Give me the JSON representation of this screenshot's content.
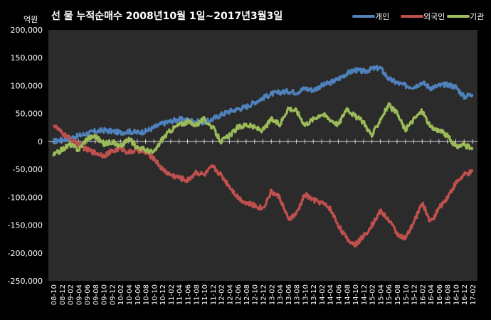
{
  "chart_data": {
    "type": "line",
    "title": "선 물 누적순매수 2008년10월 1일~2017년3월3일",
    "ylabel": "억원",
    "xlabel": "",
    "ylim": [
      -250000,
      200000
    ],
    "yticks": [
      200000,
      150000,
      100000,
      50000,
      0,
      -50000,
      -100000,
      -150000,
      -200000,
      -250000
    ],
    "ytick_labels": [
      "200,000",
      "150,000",
      "100,000",
      "50,000",
      "0",
      "-50,000",
      "-100,000",
      "-150,000",
      "-200,000",
      "-250,000"
    ],
    "legend_position": "top-right",
    "grid": false,
    "categories": [
      "08-10",
      "08-12",
      "09-02",
      "09-04",
      "09-06",
      "09-08",
      "09-10",
      "09-12",
      "10-02",
      "10-04",
      "10-06",
      "10-08",
      "10-10",
      "10-12",
      "11-02",
      "11-04",
      "11-06",
      "11-08",
      "11-10",
      "11-12",
      "12-02",
      "12-04",
      "12-06",
      "12-08",
      "12-10",
      "12-12",
      "13-02",
      "13-04",
      "13-06",
      "13-08",
      "13-10",
      "13-12",
      "14-02",
      "14-04",
      "14-06",
      "14-08",
      "14-10",
      "14-12",
      "15-02",
      "15-04",
      "15-06",
      "15-08",
      "15-10",
      "15-12",
      "16-02",
      "16-04",
      "16-06",
      "16-08",
      "16-10",
      "16-12",
      "17-02"
    ],
    "series": [
      {
        "name": "개인",
        "color": "#4f81bd",
        "values": [
          0,
          3000,
          6000,
          10000,
          14000,
          18000,
          20000,
          18000,
          16000,
          18000,
          16000,
          18000,
          25000,
          32000,
          36000,
          40000,
          38000,
          36000,
          34000,
          40000,
          48000,
          54000,
          58000,
          62000,
          70000,
          78000,
          85000,
          88000,
          90000,
          88000,
          95000,
          92000,
          100000,
          105000,
          112000,
          122000,
          128000,
          125000,
          130000,
          132000,
          112000,
          105000,
          100000,
          98000,
          106000,
          96000,
          100000,
          102000,
          98000,
          80000,
          85000
        ]
      },
      {
        "name": "외국인",
        "color": "#c0504d",
        "values": [
          30000,
          15000,
          5000,
          -5000,
          -15000,
          -20000,
          -25000,
          -18000,
          -12000,
          -20000,
          -15000,
          -20000,
          -30000,
          -50000,
          -60000,
          -65000,
          -70000,
          -55000,
          -60000,
          -45000,
          -60000,
          -80000,
          -100000,
          -110000,
          -115000,
          -120000,
          -90000,
          -100000,
          -140000,
          -130000,
          -95000,
          -105000,
          -110000,
          -120000,
          -150000,
          -175000,
          -185000,
          -170000,
          -150000,
          -125000,
          -140000,
          -165000,
          -175000,
          -145000,
          -110000,
          -145000,
          -120000,
          -100000,
          -75000,
          -60000,
          -55000
        ]
      },
      {
        "name": "기관",
        "color": "#9bbb59",
        "values": [
          -25000,
          -15000,
          -5000,
          -15000,
          5000,
          10000,
          -5000,
          0,
          -10000,
          5000,
          -10000,
          -15000,
          -20000,
          5000,
          20000,
          30000,
          35000,
          30000,
          40000,
          25000,
          0,
          10000,
          25000,
          30000,
          25000,
          20000,
          40000,
          30000,
          60000,
          55000,
          30000,
          40000,
          50000,
          40000,
          30000,
          60000,
          45000,
          35000,
          10000,
          40000,
          65000,
          50000,
          20000,
          40000,
          55000,
          25000,
          20000,
          10000,
          -10000,
          -5000,
          -15000
        ]
      }
    ]
  }
}
